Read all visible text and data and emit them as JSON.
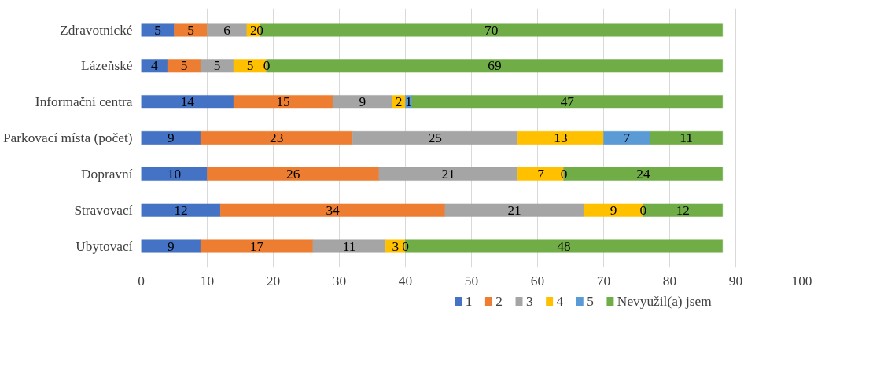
{
  "chart_data": {
    "type": "bar",
    "orientation": "horizontal",
    "stacked": true,
    "data_labels": true,
    "grid": "x",
    "legend": "bottom",
    "categories": [
      "Zdravotnické",
      "Lázeňské",
      "Informační centra",
      "Parkovací místa (počet)",
      "Dopravní",
      "Stravovací",
      "Ubytovací"
    ],
    "xlim": [
      0,
      100
    ],
    "xticks": [
      0,
      10,
      20,
      30,
      40,
      50,
      60,
      70,
      80,
      90,
      100
    ],
    "series": [
      {
        "name": "1",
        "color": "#4472c4",
        "values": [
          5,
          4,
          14,
          9,
          10,
          12,
          9
        ]
      },
      {
        "name": "2",
        "color": "#ed7d31",
        "values": [
          5,
          5,
          15,
          23,
          26,
          34,
          17
        ]
      },
      {
        "name": "3",
        "color": "#a5a5a5",
        "values": [
          6,
          5,
          9,
          25,
          21,
          21,
          11
        ]
      },
      {
        "name": "4",
        "color": "#ffc000",
        "values": [
          2,
          5,
          2,
          13,
          7,
          9,
          3
        ]
      },
      {
        "name": "5",
        "color": "#5b9bd5",
        "values": [
          0,
          0,
          1,
          7,
          0,
          0,
          0
        ]
      },
      {
        "name": "Nevyužil(a) jsem",
        "color": "#70ad47",
        "values": [
          70,
          69,
          47,
          11,
          24,
          12,
          48
        ]
      }
    ]
  }
}
